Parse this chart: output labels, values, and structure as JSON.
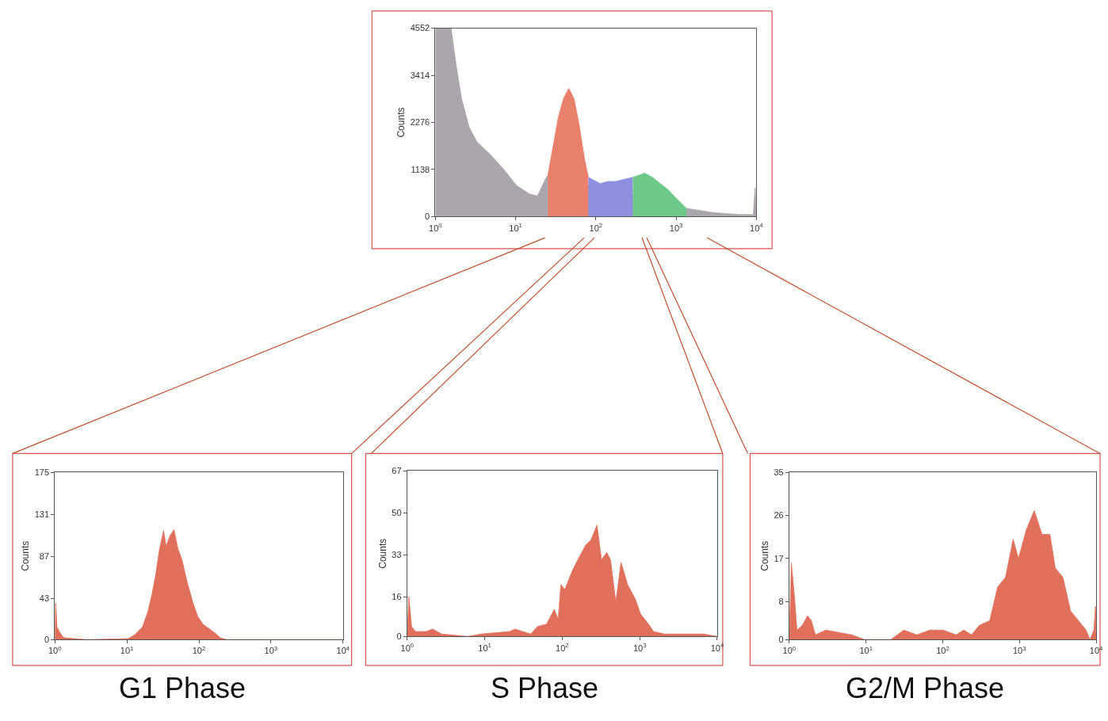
{
  "chart_data": [
    {
      "type": "area",
      "ylabel": "Counts",
      "log": "x",
      "xlim": [
        1,
        10000
      ],
      "ylim": [
        0,
        4552
      ],
      "xticks": [
        {
          "value": 1,
          "label": "10$^{0}$"
        },
        {
          "value": 10,
          "label": "10$^{1}$"
        },
        {
          "value": 100,
          "label": "10$^{2}$"
        },
        {
          "value": 1000,
          "label": "10$^{3}$"
        },
        {
          "value": 10000,
          "label": "10$^{4}$"
        }
      ],
      "yticks": [
        0,
        1138,
        2276,
        3414,
        4552
      ],
      "series": [
        {
          "color": "#aba6ae",
          "x": [
            1,
            1.57,
            1.82,
            2.12,
            2.65,
            3.32,
            4.84,
            7.05,
            10.3,
            14.9,
            18.7,
            23.4,
            25.2,
            100,
            1349,
            1963,
            2857,
            6053,
            9140,
            9637,
            10000
          ],
          "values": [
            4550,
            4550,
            3650,
            2850,
            2150,
            1800,
            1500,
            1150,
            750,
            550,
            500,
            900,
            1000,
            null,
            200,
            150,
            100,
            50,
            50,
            700,
            0
          ]
        },
        {
          "color": "#e8806c",
          "x": [
            25.2,
            29.3,
            34.0,
            39.5,
            46.0,
            53.5,
            62.1,
            72.1,
            80.7
          ],
          "values": [
            1000,
            1700,
            2400,
            2850,
            3100,
            2850,
            2200,
            1400,
            950
          ]
        },
        {
          "color": "#8f8fe0",
          "x": [
            80.7,
            90.4,
            113,
            142,
            177,
            222,
            289
          ],
          "values": [
            950,
            900,
            800,
            850,
            850,
            900,
            950
          ]
        },
        {
          "color": "#6cc98a",
          "x": [
            289,
            406,
            508,
            636,
            797,
            997,
            1349
          ],
          "values": [
            950,
            1050,
            950,
            800,
            650,
            450,
            200
          ]
        }
      ]
    },
    {
      "type": "area",
      "title": "G1 Phase",
      "ylabel": "Counts",
      "log": "x",
      "xlim": [
        1,
        10000
      ],
      "ylim": [
        0,
        175
      ],
      "xticks": [
        {
          "value": 1,
          "label": "10$^{0}$"
        },
        {
          "value": 10,
          "label": "10$^{1}$"
        },
        {
          "value": 100,
          "label": "10$^{2}$"
        },
        {
          "value": 1000,
          "label": "10$^{3}$"
        },
        {
          "value": 10000,
          "label": "10$^{4}$"
        }
      ],
      "yticks": [
        0,
        43,
        87,
        131,
        175
      ],
      "series": [
        {
          "color": "#e0705c",
          "x": [
            1,
            1.025,
            1.07,
            1.16,
            1.32,
            1.85,
            2.81,
            10.4,
            12.8,
            16.4,
            19.5,
            22.1,
            25.1,
            28.4,
            32.3,
            35.0,
            39.9,
            45.1,
            51.1,
            58.0,
            68.8,
            81.5,
            96.5,
            114,
            147,
            173,
            196,
            242,
            10000
          ],
          "values": [
            0,
            38,
            13,
            8,
            2,
            1,
            0,
            1,
            5,
            13,
            29,
            46,
            68,
            95,
            114,
            98,
            109,
            115,
            95,
            84,
            60,
            40,
            24,
            16,
            10,
            6,
            2,
            0,
            0
          ]
        }
      ]
    },
    {
      "type": "area",
      "title": "S Phase",
      "ylabel": "Counts",
      "log": "x",
      "xlim": [
        1,
        10000
      ],
      "ylim": [
        0,
        67
      ],
      "xticks": [
        {
          "value": 1,
          "label": "10$^{0}$"
        },
        {
          "value": 10,
          "label": "10$^{1}$"
        },
        {
          "value": 100,
          "label": "10$^{2}$"
        },
        {
          "value": 1000,
          "label": "10$^{3}$"
        },
        {
          "value": 10000,
          "label": "10$^{4}$"
        }
      ],
      "yticks": [
        0,
        16,
        33,
        50,
        67
      ],
      "series": [
        {
          "color": "#e0705c",
          "x": [
            1,
            1.05,
            1.14,
            1.28,
            1.75,
            2.13,
            2.79,
            6.08,
            8.97,
            21.0,
            24.6,
            39.3,
            47.8,
            62.7,
            79.0,
            88.8,
            96.1,
            108,
            137,
            159,
            201,
            235,
            281,
            322,
            375,
            420,
            492,
            574,
            697,
            880,
            1030,
            1300,
            1510,
            2090,
            4540,
            6700,
            10000
          ],
          "values": [
            0,
            16,
            4,
            2,
            2,
            3,
            1,
            0,
            1,
            2,
            3,
            1,
            4,
            5,
            11,
            7,
            21,
            19,
            27,
            31,
            37,
            39,
            45,
            31,
            34,
            31,
            14,
            30,
            21,
            15,
            9,
            5,
            2,
            1,
            1,
            1,
            0
          ]
        }
      ]
    },
    {
      "type": "area",
      "title": "G2/M Phase",
      "ylabel": "Counts",
      "log": "x",
      "xlim": [
        1,
        10000
      ],
      "ylim": [
        0,
        35
      ],
      "xticks": [
        {
          "value": 1,
          "label": "10$^{0}$"
        },
        {
          "value": 10,
          "label": "10$^{1}$"
        },
        {
          "value": 100,
          "label": "10$^{2}$"
        },
        {
          "value": 1000,
          "label": "10$^{3}$"
        },
        {
          "value": 10000,
          "label": "10$^{4}$"
        }
      ],
      "yticks": [
        0,
        8,
        17,
        26,
        35
      ],
      "series": [
        {
          "color": "#e0705c",
          "x": [
            1,
            1.065,
            1.17,
            1.26,
            1.48,
            1.73,
            1.94,
            2.19,
            2.99,
            6.52,
            9.64,
            21.0,
            31.1,
            46.0,
            68.2,
            101,
            149,
            188,
            237,
            301,
            411,
            519,
            657,
            828,
            971,
            1230,
            1560,
            1970,
            2500,
            2930,
            3690,
            4640,
            5860,
            7380,
            8300,
            9350,
            9800,
            10000
          ],
          "values": [
            0,
            16,
            9,
            2,
            3,
            5,
            4,
            1,
            2,
            1,
            0,
            0,
            2,
            1,
            2,
            2,
            1,
            2,
            1,
            3,
            4,
            11,
            13,
            21,
            17,
            23,
            27,
            22,
            22,
            15,
            13,
            6,
            4,
            2,
            0,
            2,
            7,
            0
          ]
        }
      ]
    }
  ]
}
